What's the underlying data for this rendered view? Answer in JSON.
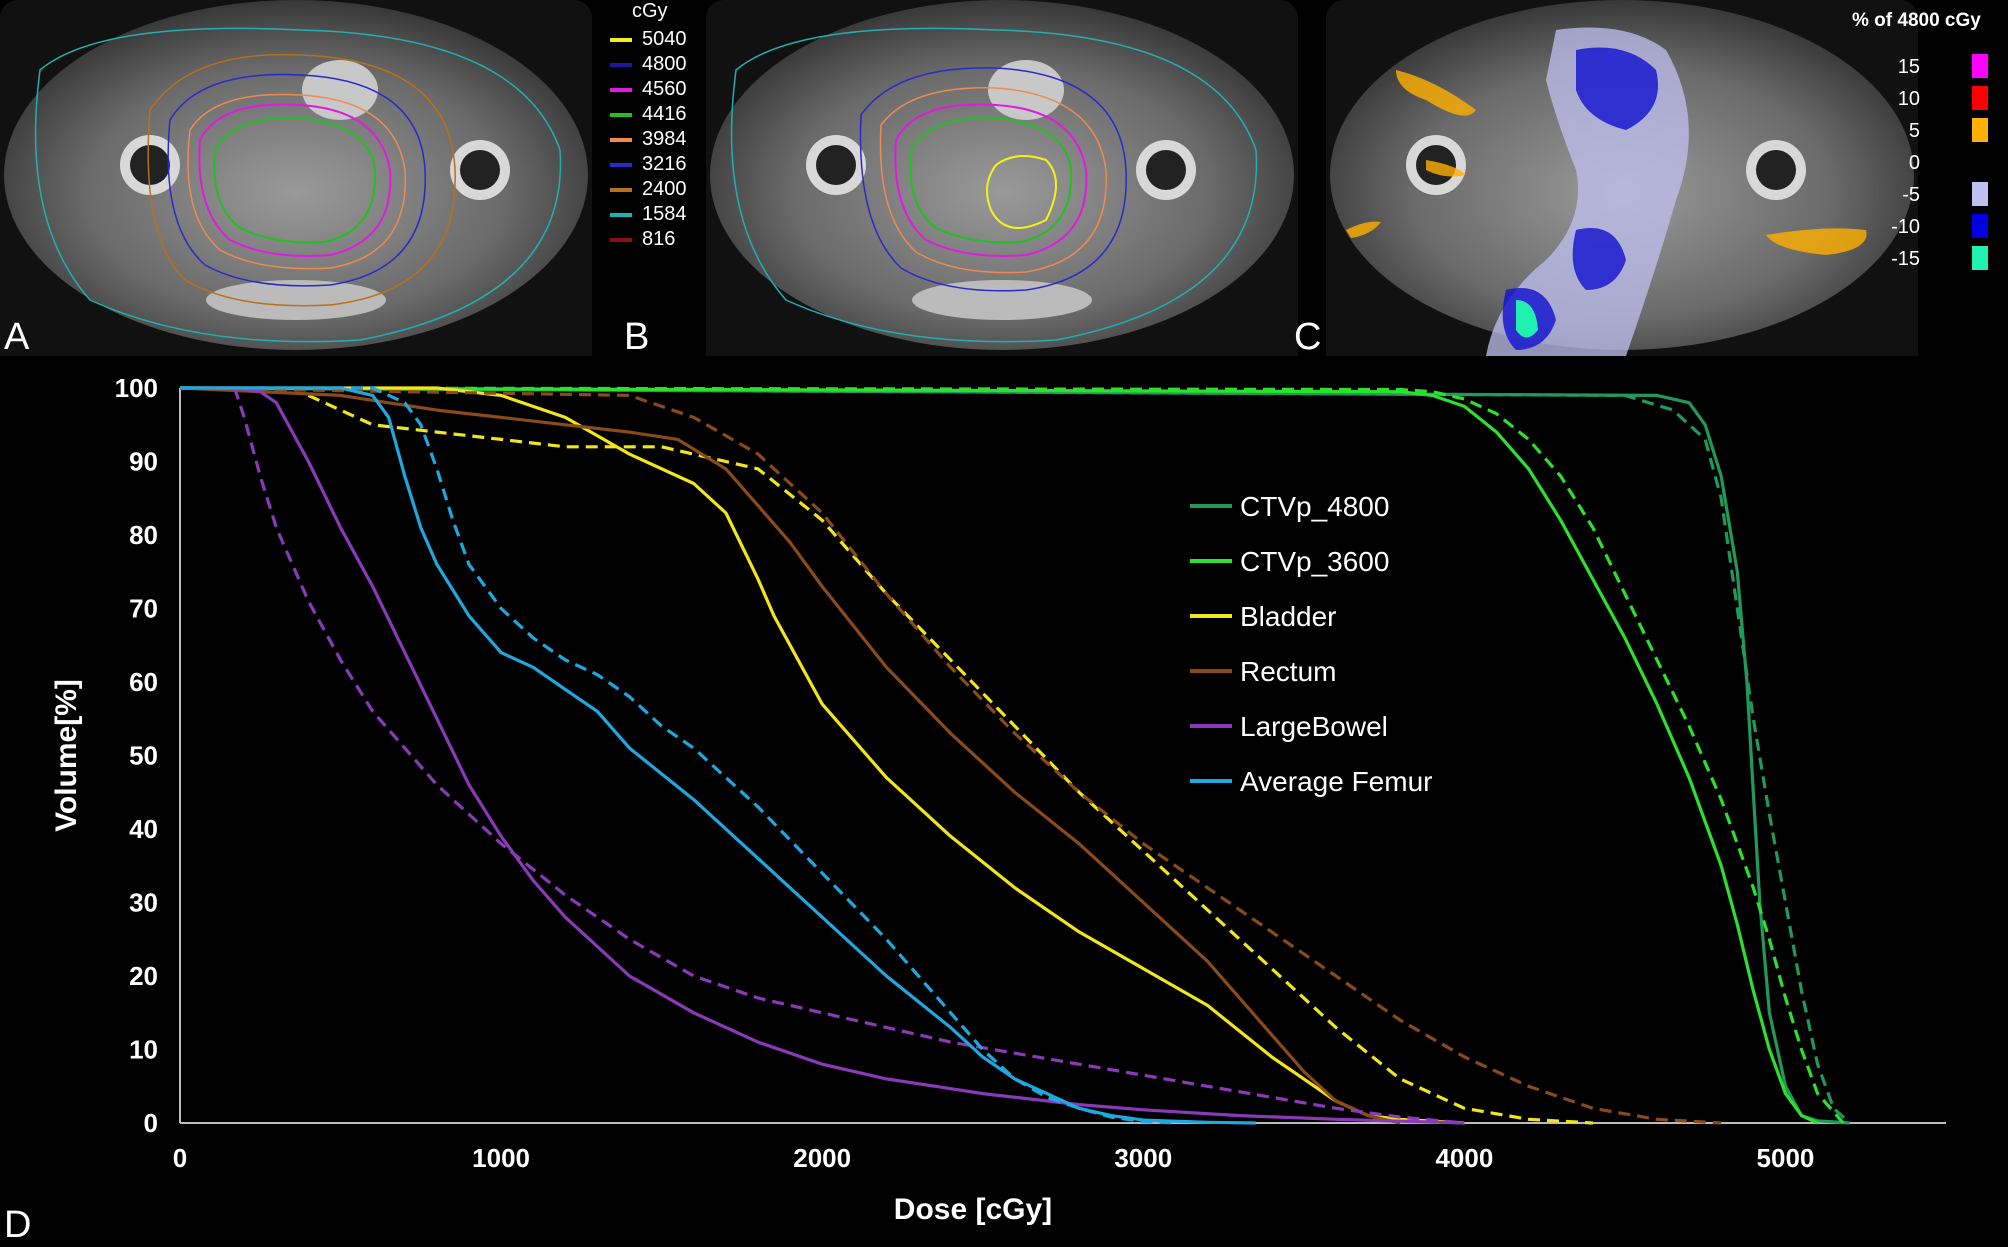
{
  "panels": {
    "a_label": "A",
    "b_label": "B",
    "c_label": "C",
    "d_label": "D"
  },
  "dose_legend": {
    "unit": "cGy",
    "items": [
      {
        "label": "5040",
        "color": "#f2f21a"
      },
      {
        "label": "4800",
        "color": "#1a1a9a"
      },
      {
        "label": "4560",
        "color": "#e01ae0"
      },
      {
        "label": "4416",
        "color": "#22c022"
      },
      {
        "label": "3984",
        "color": "#f08a50"
      },
      {
        "label": "3216",
        "color": "#2a2ac8"
      },
      {
        "label": "2400",
        "color": "#b8701a"
      },
      {
        "label": "1584",
        "color": "#20b0b0"
      },
      {
        "label": "816",
        "color": "#8a1010"
      }
    ]
  },
  "diff_scale": {
    "title": "% of 4800 cGy",
    "items": [
      {
        "label": "15",
        "color": "#ff00ff"
      },
      {
        "label": "10",
        "color": "#ff0000"
      },
      {
        "label": "5",
        "color": "#ffb000"
      },
      {
        "label": "0",
        "color": null
      },
      {
        "label": "-5",
        "color": "#c0c0f0"
      },
      {
        "label": "-10",
        "color": "#0000e0"
      },
      {
        "label": "-15",
        "color": "#20f0b0"
      }
    ]
  },
  "chart_data": {
    "type": "line",
    "xlabel": "Dose [cGy]",
    "ylabel": "Volume[%]",
    "xlim": [
      0,
      5500
    ],
    "ylim": [
      0,
      100
    ],
    "xticks": [
      0,
      1000,
      2000,
      3000,
      4000,
      5000
    ],
    "yticks": [
      0,
      10,
      20,
      30,
      40,
      50,
      60,
      70,
      80,
      90,
      100
    ],
    "legend_position": "center-right",
    "series": [
      {
        "name": "CTVp_4800",
        "color": "#1f9a5a",
        "style": "solid",
        "x": [
          0,
          4600,
          4700,
          4750,
          4800,
          4850,
          4880,
          4900,
          4920,
          4950,
          5000,
          5050,
          5100,
          5200
        ],
        "y": [
          100,
          99,
          98,
          95,
          88,
          75,
          60,
          45,
          30,
          15,
          5,
          1,
          0.3,
          0
        ]
      },
      {
        "name": "CTVp_4800",
        "color": "#1f9a5a",
        "style": "dashed",
        "x": [
          0,
          4500,
          4650,
          4750,
          4800,
          4850,
          4900,
          4950,
          5000,
          5050,
          5100,
          5150,
          5200
        ],
        "y": [
          100,
          99,
          97,
          93,
          85,
          70,
          55,
          42,
          30,
          18,
          8,
          2,
          0
        ]
      },
      {
        "name": "CTVp_3600",
        "color": "#2ee02e",
        "style": "solid",
        "x": [
          0,
          3800,
          3900,
          4000,
          4100,
          4200,
          4300,
          4400,
          4500,
          4600,
          4700,
          4800,
          4850,
          4900,
          4950,
          5000,
          5050,
          5100
        ],
        "y": [
          100,
          99.5,
          99,
          97.5,
          94,
          89,
          82,
          74,
          66,
          57,
          47,
          35,
          27,
          18,
          10,
          4,
          1,
          0
        ]
      },
      {
        "name": "CTVp_3600",
        "color": "#2ee02e",
        "style": "dashed",
        "x": [
          0,
          3800,
          3900,
          4000,
          4100,
          4200,
          4300,
          4400,
          4500,
          4600,
          4700,
          4800,
          4850,
          4900,
          4950,
          5000,
          5050,
          5100,
          5180
        ],
        "y": [
          100,
          99.8,
          99.5,
          98.5,
          96.5,
          93,
          88,
          81,
          72,
          63,
          54,
          44,
          38,
          32,
          25,
          17,
          10,
          4,
          0
        ]
      },
      {
        "name": "Bladder",
        "color": "#f2e51a",
        "style": "solid",
        "x": [
          0,
          800,
          1000,
          1200,
          1400,
          1600,
          1700,
          1800,
          1850,
          1900,
          2000,
          2200,
          2400,
          2600,
          2800,
          3000,
          3200,
          3400,
          3500,
          3600,
          3700,
          3800,
          4000
        ],
        "y": [
          100,
          100,
          99,
          96,
          91,
          87,
          83,
          74,
          69,
          65,
          57,
          47,
          39,
          32,
          26,
          21,
          16,
          9,
          6,
          3,
          1,
          0.5,
          0
        ]
      },
      {
        "name": "Bladder",
        "color": "#f2e51a",
        "style": "dashed",
        "x": [
          400,
          500,
          600,
          800,
          1000,
          1200,
          1500,
          1800,
          2000,
          2200,
          2400,
          2600,
          2800,
          3000,
          3200,
          3400,
          3600,
          3800,
          4000,
          4200,
          4400
        ],
        "y": [
          99,
          97,
          95,
          94,
          93,
          92,
          92,
          89,
          82,
          72,
          63,
          54,
          45,
          37,
          29,
          21,
          13,
          6,
          2,
          0.5,
          0
        ]
      },
      {
        "name": "Rectum",
        "color": "#8a4a1a",
        "style": "solid",
        "x": [
          0,
          500,
          800,
          1000,
          1200,
          1400,
          1550,
          1700,
          1800,
          1900,
          2000,
          2200,
          2400,
          2600,
          2800,
          3000,
          3200,
          3400,
          3500,
          3600,
          3700,
          3800
        ],
        "y": [
          100,
          99,
          97,
          96,
          95,
          94,
          93,
          89,
          84,
          79,
          73,
          62,
          53,
          45,
          38,
          30,
          22,
          12,
          7,
          3,
          1,
          0
        ]
      },
      {
        "name": "Rectum",
        "color": "#8a4a1a",
        "style": "dashed",
        "x": [
          0,
          1400,
          1600,
          1800,
          2000,
          2200,
          2400,
          2600,
          2800,
          3000,
          3200,
          3400,
          3600,
          3800,
          4000,
          4200,
          4400,
          4600,
          4800
        ],
        "y": [
          100,
          99,
          96,
          91,
          83,
          72,
          62,
          53,
          45,
          38,
          32,
          26,
          20,
          14,
          9,
          5,
          2,
          0.5,
          0
        ]
      },
      {
        "name": "LargeBowel",
        "color": "#8a3ab8",
        "style": "solid",
        "x": [
          0,
          180,
          250,
          300,
          400,
          500,
          600,
          700,
          800,
          900,
          1000,
          1100,
          1200,
          1300,
          1400,
          1600,
          1800,
          2000,
          2200,
          2500,
          2800,
          3000,
          3300,
          3600,
          4000
        ],
        "y": [
          100,
          100,
          99.5,
          98,
          90,
          81,
          73,
          64,
          55,
          46,
          39,
          33,
          28,
          24,
          20,
          15,
          11,
          8,
          6,
          4,
          2.5,
          1.8,
          1,
          0.5,
          0
        ]
      },
      {
        "name": "LargeBowel",
        "color": "#8a3ab8",
        "style": "dashed",
        "x": [
          170,
          200,
          250,
          300,
          400,
          500,
          600,
          700,
          800,
          1000,
          1200,
          1400,
          1600,
          1800,
          2000,
          2200,
          2400,
          2600,
          2800,
          3000,
          3200,
          3400,
          3600,
          3800,
          4000
        ],
        "y": [
          100,
          96,
          88,
          81,
          71,
          63,
          56,
          51,
          46,
          38,
          31,
          25,
          20,
          17,
          15,
          13,
          11,
          9.5,
          8,
          6.5,
          5,
          3.5,
          2,
          0.8,
          0
        ]
      },
      {
        "name": "Average Femur",
        "color": "#1fa8e0",
        "style": "solid",
        "x": [
          0,
          500,
          600,
          650,
          700,
          750,
          800,
          900,
          1000,
          1100,
          1200,
          1300,
          1400,
          1600,
          1800,
          2000,
          2200,
          2400,
          2500,
          2600,
          2700,
          2800,
          2900,
          3000,
          3200,
          3350
        ],
        "y": [
          100,
          100,
          99,
          96,
          88,
          81,
          76,
          69,
          64,
          62,
          59,
          56,
          51,
          44,
          36,
          28,
          20,
          13,
          9,
          6,
          4,
          2,
          1,
          0.4,
          0.1,
          0
        ]
      },
      {
        "name": "Average Femur",
        "color": "#1fa8e0",
        "style": "dashed",
        "x": [
          0,
          600,
          700,
          750,
          800,
          850,
          900,
          1000,
          1100,
          1200,
          1300,
          1400,
          1500,
          1600,
          1800,
          2000,
          2200,
          2400,
          2500,
          2600,
          2700,
          2800,
          2900,
          3000,
          3100
        ],
        "y": [
          100,
          100,
          98,
          95,
          89,
          82,
          76,
          70,
          66,
          63,
          61,
          58,
          54,
          51,
          43,
          34,
          25,
          15,
          10,
          6,
          3.5,
          2,
          0.8,
          0.2,
          0
        ]
      }
    ],
    "legend": [
      "CTVp_4800",
      "CTVp_3600",
      "Bladder",
      "Rectum",
      "LargeBowel",
      "Average Femur"
    ],
    "legend_colors": [
      "#1f9a5a",
      "#2ee02e",
      "#f2e51a",
      "#8a4a1a",
      "#8a3ab8",
      "#1fa8e0"
    ]
  }
}
